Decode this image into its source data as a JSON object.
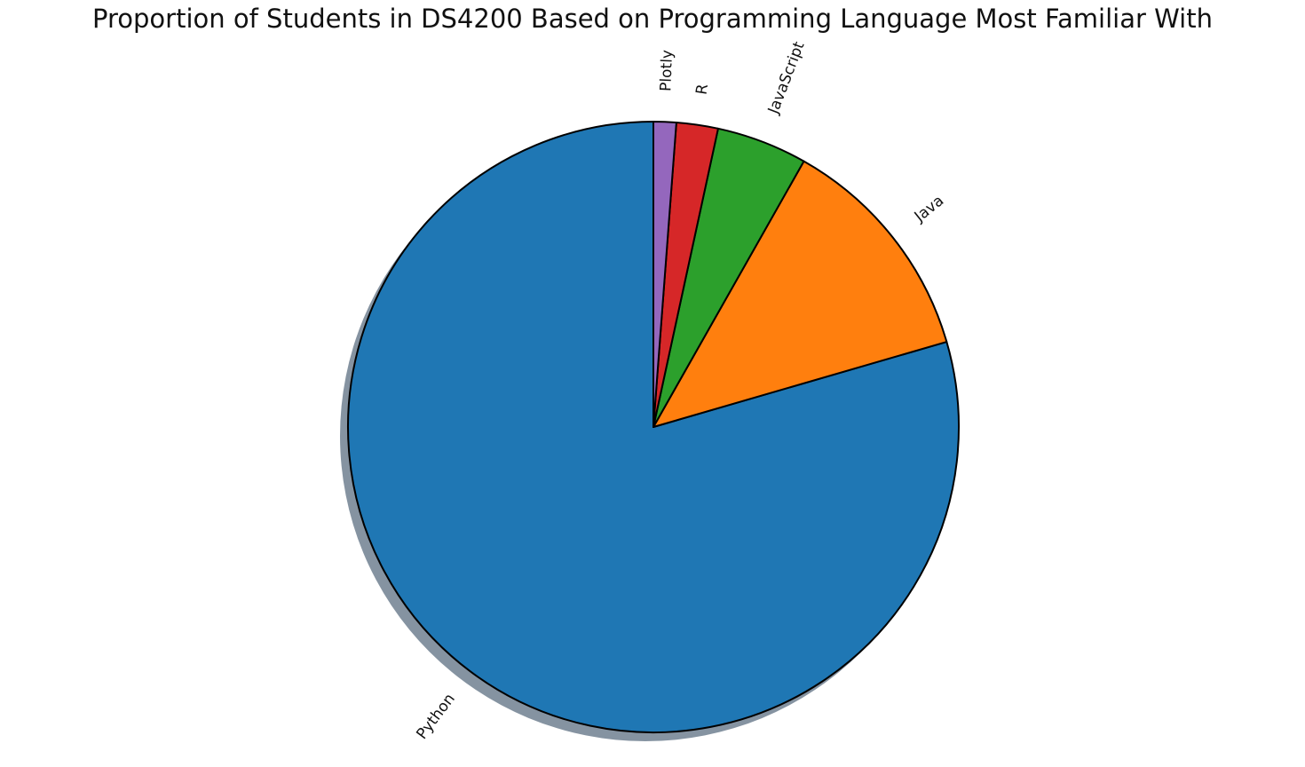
{
  "chart_data": {
    "type": "pie",
    "title": "Proportion of Students in DS4200 Based on Programming Language Most Familiar With",
    "start_angle_deg": 90,
    "direction": "counterclockwise",
    "shadow": true,
    "edgecolor": "#000000",
    "rotate_labels": true,
    "slices": [
      {
        "label": "Python",
        "value": 79.5,
        "color": "#1f77b4"
      },
      {
        "label": "Java",
        "value": 12.3,
        "color": "#ff7f0e"
      },
      {
        "label": "JavaScript",
        "value": 4.8,
        "color": "#2ca02c"
      },
      {
        "label": "R",
        "value": 2.2,
        "color": "#d62728"
      },
      {
        "label": "Plotly",
        "value": 1.2,
        "color": "#9467bd"
      }
    ]
  }
}
